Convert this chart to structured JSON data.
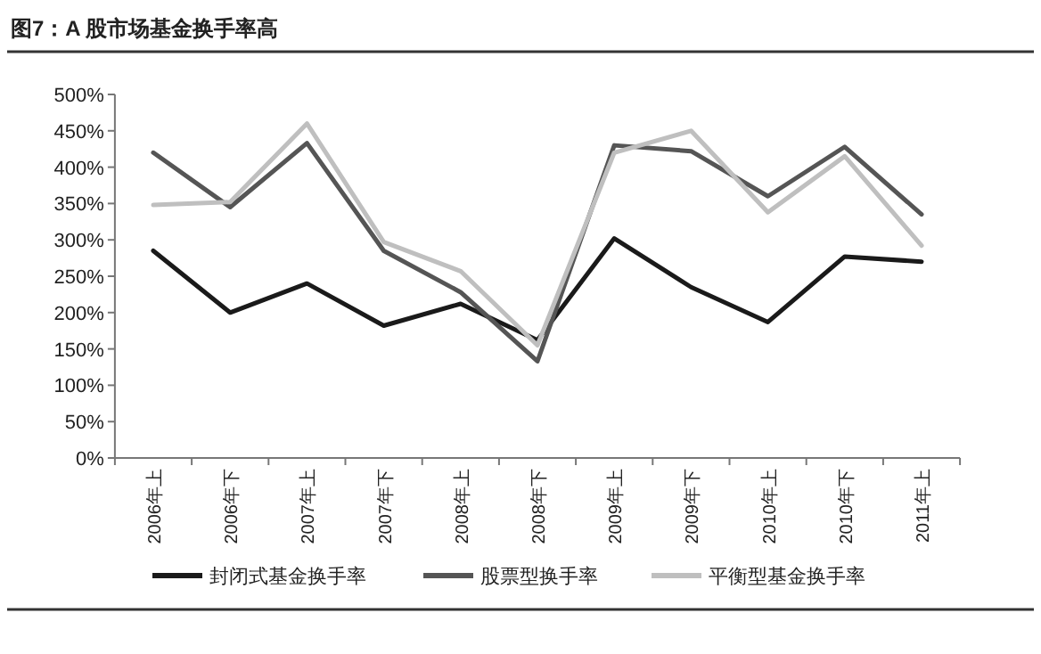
{
  "chart_data": {
    "type": "line",
    "title": "图7：A 股市场基金换手率高",
    "categories": [
      "2006年上",
      "2006年下",
      "2007年上",
      "2007年下",
      "2008年上",
      "2008年下",
      "2009年上",
      "2009年下",
      "2010年上",
      "2010年下",
      "2011年上"
    ],
    "series": [
      {
        "name": "封闭式基金换手率",
        "color": "#1a1a1a",
        "values": [
          285,
          200,
          240,
          182,
          212,
          162,
          302,
          235,
          187,
          277,
          270
        ]
      },
      {
        "name": "股票型换手率",
        "color": "#555555",
        "values": [
          420,
          345,
          433,
          285,
          228,
          133,
          430,
          422,
          360,
          428,
          335
        ]
      },
      {
        "name": "平衡型基金换手率",
        "color": "#bfbfbf",
        "values": [
          348,
          352,
          460,
          297,
          257,
          155,
          420,
          450,
          338,
          415,
          292
        ]
      }
    ],
    "ylim": [
      0,
      500
    ],
    "yticks": [
      {
        "value": 0,
        "label": "0%"
      },
      {
        "value": 50,
        "label": "50%"
      },
      {
        "value": 100,
        "label": "100%"
      },
      {
        "value": 150,
        "label": "150%"
      },
      {
        "value": 200,
        "label": "200%"
      },
      {
        "value": 250,
        "label": "250%"
      },
      {
        "value": 300,
        "label": "300%"
      },
      {
        "value": 350,
        "label": "350%"
      },
      {
        "value": 400,
        "label": "400%"
      },
      {
        "value": 450,
        "label": "450%"
      },
      {
        "value": 500,
        "label": "500%"
      }
    ],
    "grid": false,
    "legend": "bottom",
    "marker": "none",
    "line_style": "solid"
  }
}
